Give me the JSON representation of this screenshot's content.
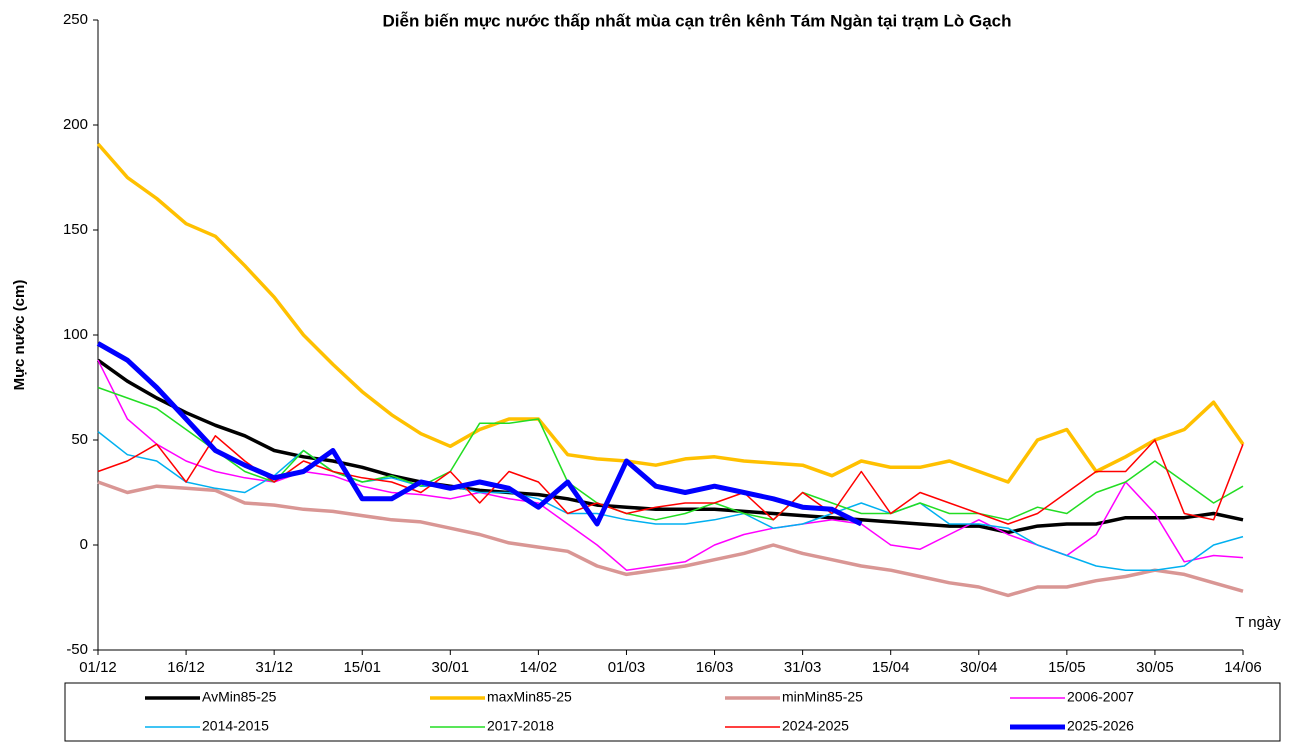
{
  "chart_data": {
    "type": "line",
    "title": "Diễn biến mực nước thấp nhất mùa cạn trên kênh Tám Ngàn tại trạm Lò Gạch",
    "y_label": "Mực nước (cm)",
    "x_label": "T ngày",
    "x": [
      0,
      5,
      10,
      15,
      20,
      25,
      30,
      35,
      40,
      45,
      50,
      55,
      60,
      65,
      70,
      75,
      80,
      85,
      90,
      95,
      100,
      105,
      110,
      115,
      120,
      125,
      130,
      135,
      140,
      145,
      150,
      155,
      160,
      165,
      170,
      175,
      180,
      185,
      190,
      195
    ],
    "xlim": [
      0,
      195
    ],
    "xticks": [
      {
        "value": 0,
        "label": "01/12"
      },
      {
        "value": 15,
        "label": "16/12"
      },
      {
        "value": 30,
        "label": "31/12"
      },
      {
        "value": 45,
        "label": "15/01"
      },
      {
        "value": 60,
        "label": "30/01"
      },
      {
        "value": 75,
        "label": "14/02"
      },
      {
        "value": 90,
        "label": "01/03"
      },
      {
        "value": 105,
        "label": "16/03"
      },
      {
        "value": 120,
        "label": "31/03"
      },
      {
        "value": 135,
        "label": "15/04"
      },
      {
        "value": 150,
        "label": "30/04"
      },
      {
        "value": 165,
        "label": "15/05"
      },
      {
        "value": 180,
        "label": "30/05"
      },
      {
        "value": 195,
        "label": "14/06"
      }
    ],
    "ylim": [
      -50,
      250
    ],
    "yticks": [
      -50,
      0,
      50,
      100,
      150,
      200,
      250
    ],
    "legend": "bottom",
    "series": [
      {
        "name": "AvMin85-25",
        "color": "#000000",
        "width": 3.5,
        "values": [
          88,
          78,
          70,
          63,
          57,
          52,
          45,
          42,
          40,
          37,
          33,
          30,
          28,
          26,
          25,
          24,
          22,
          19,
          18,
          17,
          17,
          17,
          16,
          15,
          14,
          13,
          12,
          11,
          10,
          9,
          9,
          6,
          9,
          10,
          10,
          13,
          13,
          13,
          15,
          12
        ]
      },
      {
        "name": "maxMin85-25",
        "color": "#ffc000",
        "width": 3.5,
        "values": [
          191,
          175,
          165,
          153,
          147,
          133,
          118,
          100,
          86,
          73,
          62,
          53,
          47,
          55,
          60,
          60,
          43,
          41,
          40,
          38,
          41,
          42,
          40,
          39,
          38,
          33,
          40,
          37,
          37,
          40,
          35,
          30,
          50,
          55,
          35,
          42,
          50,
          55,
          68,
          48
        ]
      },
      {
        "name": "minMin85-25",
        "color": "#d99694",
        "width": 3.5,
        "values": [
          30,
          25,
          28,
          27,
          26,
          20,
          19,
          17,
          16,
          14,
          12,
          11,
          8,
          5,
          1,
          -1,
          -3,
          -10,
          -14,
          -12,
          -10,
          -7,
          -4,
          0,
          -4,
          -7,
          -10,
          -12,
          -15,
          -18,
          -20,
          -24,
          -20,
          -20,
          -17,
          -15,
          -12,
          -14,
          -18,
          -22
        ]
      },
      {
        "name": "2006-2007",
        "color": "#ff00ff",
        "width": 1.5,
        "values": [
          88,
          60,
          48,
          40,
          35,
          32,
          30,
          35,
          33,
          28,
          25,
          24,
          22,
          25,
          22,
          20,
          10,
          0,
          -12,
          -10,
          -8,
          0,
          5,
          8,
          10,
          12,
          10,
          0,
          -2,
          5,
          12,
          5,
          0,
          -5,
          5,
          30,
          15,
          -8,
          -5,
          -6
        ]
      },
      {
        "name": "2014-2015",
        "color": "#00b0f0",
        "width": 1.5,
        "values": [
          54,
          43,
          40,
          30,
          27,
          25,
          33,
          45,
          35,
          30,
          32,
          28,
          28,
          25,
          25,
          22,
          15,
          15,
          12,
          10,
          10,
          12,
          15,
          8,
          10,
          15,
          20,
          15,
          20,
          10,
          10,
          8,
          0,
          -5,
          -10,
          -12,
          -12,
          -10,
          0,
          4
        ]
      },
      {
        "name": "2017-2018",
        "color": "#22dd22",
        "width": 1.5,
        "values": [
          75,
          70,
          65,
          55,
          45,
          35,
          30,
          45,
          35,
          30,
          33,
          28,
          35,
          58,
          58,
          60,
          30,
          20,
          15,
          12,
          15,
          20,
          15,
          12,
          25,
          20,
          15,
          15,
          20,
          15,
          15,
          12,
          18,
          15,
          25,
          30,
          40,
          30,
          20,
          28
        ]
      },
      {
        "name": "2024-2025",
        "color": "#ff0000",
        "width": 1.5,
        "values": [
          35,
          40,
          48,
          30,
          52,
          40,
          30,
          40,
          35,
          32,
          30,
          25,
          35,
          20,
          35,
          30,
          15,
          20,
          15,
          18,
          20,
          20,
          25,
          12,
          25,
          15,
          35,
          15,
          25,
          20,
          15,
          10,
          15,
          25,
          35,
          35,
          50,
          15,
          12,
          48
        ]
      },
      {
        "name": "2025-2026",
        "color": "#0000ff",
        "width": 5,
        "values": [
          96,
          88,
          75,
          60,
          45,
          38,
          32,
          35,
          45,
          22,
          22,
          30,
          27,
          30,
          27,
          18,
          30,
          10,
          40,
          28,
          25,
          28,
          25,
          22,
          18,
          17,
          10,
          null,
          null,
          null,
          null,
          null,
          null,
          null,
          null,
          null,
          null,
          null,
          null,
          null
        ]
      }
    ]
  }
}
